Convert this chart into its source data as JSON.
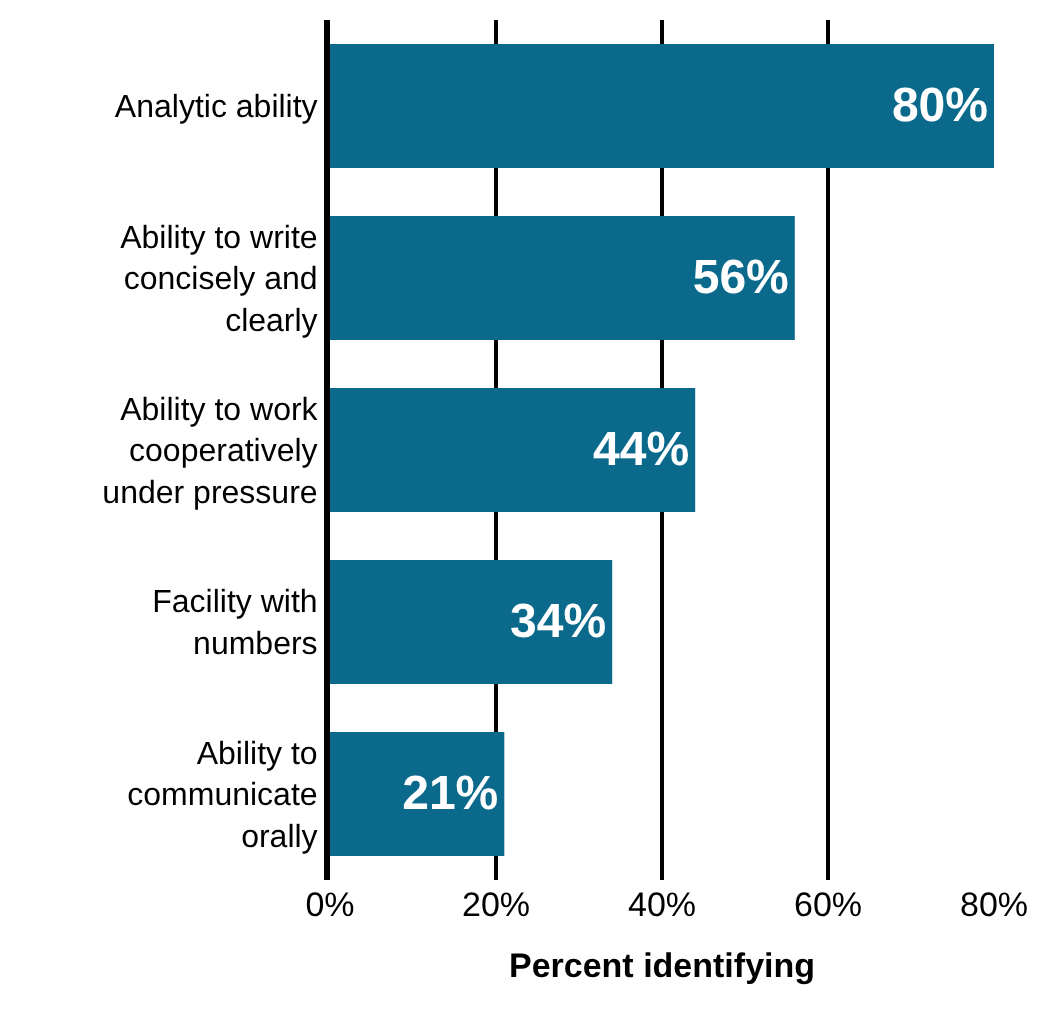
{
  "chart_data": {
    "type": "bar",
    "orientation": "horizontal",
    "xlabel": "Percent identifying",
    "categories": [
      "Analytic ability",
      "Ability to write concisely and clearly",
      "Ability to work cooperatively under pressure",
      "Facility with numbers",
      "Ability to communicate orally"
    ],
    "values": [
      80,
      56,
      44,
      34,
      21
    ],
    "value_labels": [
      "80%",
      "56%",
      "44%",
      "34%",
      "21%"
    ],
    "color": "#0b6a8c",
    "xlim": [
      0,
      80
    ],
    "xticks": [
      {
        "value": 0,
        "label": "0%"
      },
      {
        "value": 20,
        "label": "20%"
      },
      {
        "value": 40,
        "label": "40%"
      },
      {
        "value": 60,
        "label": "60%"
      },
      {
        "value": 80,
        "label": "80%"
      }
    ],
    "grid": "x",
    "legend": false
  }
}
